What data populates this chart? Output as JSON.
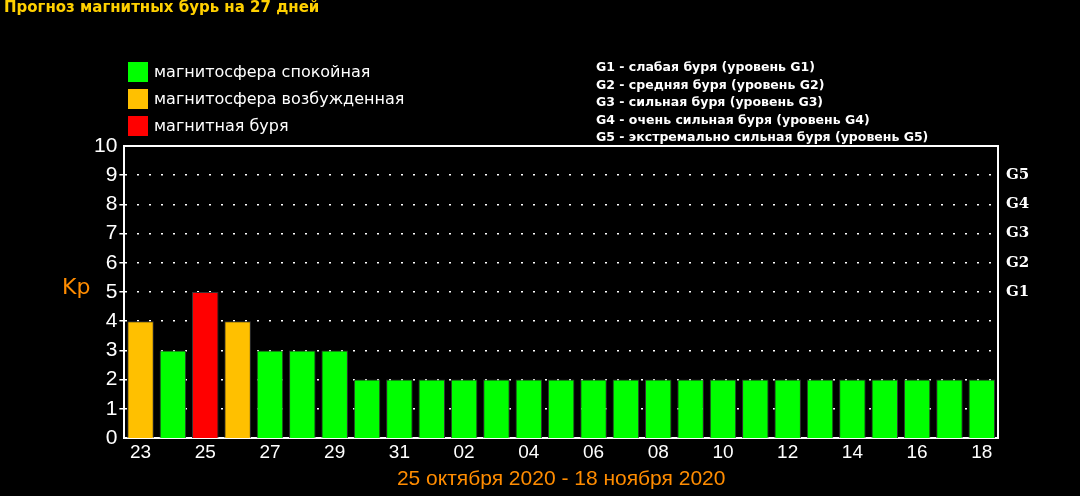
{
  "chart_data": {
    "type": "bar",
    "title": "Прогноз магнитных бурь на 27 дней",
    "categories": [
      "23",
      null,
      "25",
      null,
      "27",
      null,
      "29",
      null,
      "31",
      null,
      "02",
      null,
      "04",
      null,
      "06",
      null,
      "08",
      null,
      "10",
      null,
      "12",
      null,
      "14",
      null,
      "16",
      null,
      "18"
    ],
    "stacked": true,
    "series": [
      {
        "name": "магнитосфера спокойная",
        "color": "#00ff00",
        "values": [
          null,
          3,
          null,
          null,
          3,
          3,
          3,
          2,
          2,
          2,
          2,
          2,
          2,
          2,
          2,
          2,
          2,
          2,
          2,
          2,
          2,
          2,
          2,
          2,
          2,
          2,
          2
        ]
      },
      {
        "name": "магнитосфера возбужденная",
        "color": "#ffc000",
        "values": [
          4,
          null,
          null,
          4,
          null,
          null,
          null,
          null,
          null,
          null,
          null,
          null,
          null,
          null,
          null,
          null,
          null,
          null,
          null,
          null,
          null,
          null,
          null,
          null,
          null,
          null,
          null
        ]
      },
      {
        "name": "магнитная буря",
        "color": "#ff0000",
        "values": [
          null,
          null,
          5,
          null,
          null,
          null,
          null,
          null,
          null,
          null,
          null,
          null,
          null,
          null,
          null,
          null,
          null,
          null,
          null,
          null,
          null,
          null,
          null,
          null,
          null,
          null,
          null
        ]
      }
    ],
    "xlabel": "25 октября 2020 - 18 ноября 2020",
    "ylabel": "Kp",
    "ylim": [
      0,
      10
    ],
    "yticks": [
      0,
      1,
      2,
      3,
      4,
      5,
      6,
      7,
      8,
      9,
      10
    ],
    "grid": "y",
    "legend": "top left",
    "annotations": [
      "G1 - слабая буря (уровень G1)",
      "G2 - средняя буря (уровень G2)",
      "G3 - сильная буря (уровень G3)",
      "G4 - очень сильная буря (уровень G4)",
      "G5 - экстремально сильная буря (уровень G5)",
      "G5",
      "G4",
      "G3",
      "G2",
      "G1"
    ]
  }
}
